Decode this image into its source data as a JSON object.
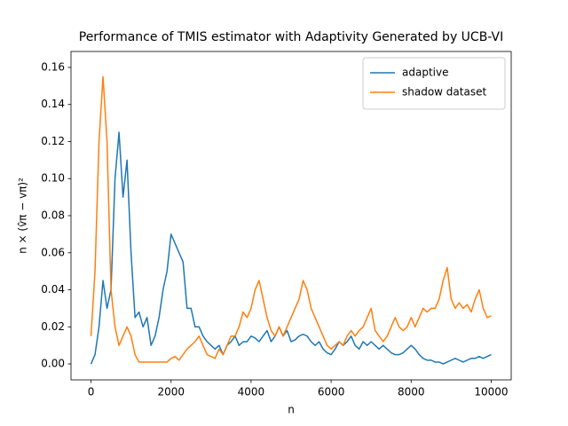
{
  "chart_data": {
    "type": "line",
    "title": "Performance of TMIS estimator with Adaptivity Generated by UCB-VI",
    "x_label": "n",
    "y_label": "n × (v̂π − vπ)²",
    "x": [
      0,
      100,
      200,
      300,
      400,
      500,
      600,
      700,
      800,
      900,
      1000,
      1100,
      1200,
      1300,
      1400,
      1500,
      1600,
      1700,
      1800,
      1900,
      2000,
      2100,
      2200,
      2300,
      2400,
      2500,
      2600,
      2700,
      2800,
      2900,
      3000,
      3100,
      3200,
      3300,
      3400,
      3500,
      3600,
      3700,
      3800,
      3900,
      4000,
      4100,
      4200,
      4300,
      4400,
      4500,
      4600,
      4700,
      4800,
      4900,
      5000,
      5100,
      5200,
      5300,
      5400,
      5500,
      5600,
      5700,
      5800,
      5900,
      6000,
      6100,
      6200,
      6300,
      6400,
      6500,
      6600,
      6700,
      6800,
      6900,
      7000,
      7100,
      7200,
      7300,
      7400,
      7500,
      7600,
      7700,
      7800,
      7900,
      8000,
      8100,
      8200,
      8300,
      8400,
      8500,
      8600,
      8700,
      8800,
      8900,
      9000,
      9100,
      9200,
      9300,
      9400,
      9500,
      9600,
      9700,
      9800,
      9900,
      10000
    ],
    "series": [
      {
        "name": "adaptive",
        "color": "#1f77b4",
        "values": [
          0,
          0.005,
          0.02,
          0.045,
          0.03,
          0.04,
          0.1,
          0.125,
          0.09,
          0.11,
          0.06,
          0.025,
          0.028,
          0.02,
          0.025,
          0.01,
          0.015,
          0.025,
          0.04,
          0.05,
          0.07,
          0.065,
          0.06,
          0.055,
          0.03,
          0.03,
          0.02,
          0.02,
          0.015,
          0.012,
          0.01,
          0.008,
          0.01,
          0.005,
          0.01,
          0.012,
          0.015,
          0.01,
          0.012,
          0.012,
          0.015,
          0.014,
          0.012,
          0.015,
          0.018,
          0.012,
          0.015,
          0.02,
          0.015,
          0.018,
          0.012,
          0.013,
          0.015,
          0.016,
          0.015,
          0.012,
          0.01,
          0.012,
          0.008,
          0.006,
          0.005,
          0.008,
          0.012,
          0.01,
          0.012,
          0.015,
          0.01,
          0.008,
          0.012,
          0.01,
          0.012,
          0.01,
          0.008,
          0.01,
          0.008,
          0.006,
          0.005,
          0.005,
          0.006,
          0.008,
          0.01,
          0.008,
          0.005,
          0.003,
          0.002,
          0.002,
          0.001,
          0.001,
          0,
          0.001,
          0.002,
          0.003,
          0.002,
          0.001,
          0.002,
          0.003,
          0.003,
          0.004,
          0.003,
          0.004,
          0.005
        ]
      },
      {
        "name": "shadow dataset",
        "color": "#ff7f0e",
        "values": [
          0.015,
          0.05,
          0.12,
          0.155,
          0.12,
          0.04,
          0.02,
          0.01,
          0.015,
          0.02,
          0.015,
          0.005,
          0.001,
          0.001,
          0.001,
          0.001,
          0.001,
          0.001,
          0.001,
          0.001,
          0.003,
          0.004,
          0.002,
          0.005,
          0.008,
          0.01,
          0.012,
          0.015,
          0.01,
          0.005,
          0.004,
          0.003,
          0.008,
          0.005,
          0.01,
          0.015,
          0.015,
          0.02,
          0.028,
          0.025,
          0.03,
          0.04,
          0.045,
          0.035,
          0.025,
          0.018,
          0.015,
          0.02,
          0.015,
          0.02,
          0.025,
          0.03,
          0.035,
          0.045,
          0.04,
          0.03,
          0.025,
          0.02,
          0.015,
          0.01,
          0.008,
          0.01,
          0.012,
          0.01,
          0.015,
          0.018,
          0.015,
          0.018,
          0.02,
          0.025,
          0.03,
          0.018,
          0.015,
          0.012,
          0.015,
          0.02,
          0.025,
          0.02,
          0.018,
          0.02,
          0.025,
          0.02,
          0.025,
          0.03,
          0.028,
          0.03,
          0.03,
          0.035,
          0.045,
          0.052,
          0.035,
          0.03,
          0.033,
          0.03,
          0.032,
          0.028,
          0.035,
          0.04,
          0.03,
          0.025,
          0.026
        ]
      }
    ],
    "xlim": [
      -500,
      10500
    ],
    "ylim": [
      -0.0086,
      0.1686
    ],
    "xticks": [
      0,
      2000,
      4000,
      6000,
      8000,
      10000
    ],
    "yticks": [
      {
        "value": 0,
        "label": "0.00"
      },
      {
        "value": 0.02,
        "label": "0.02"
      },
      {
        "value": 0.04,
        "label": "0.04"
      },
      {
        "value": 0.06,
        "label": "0.06"
      },
      {
        "value": 0.08,
        "label": "0.08"
      },
      {
        "value": 0.1,
        "label": "0.10"
      },
      {
        "value": 0.12,
        "label": "0.12"
      },
      {
        "value": 0.14,
        "label": "0.14"
      },
      {
        "value": 0.16,
        "label": "0.16"
      }
    ],
    "legend": "upper right"
  }
}
